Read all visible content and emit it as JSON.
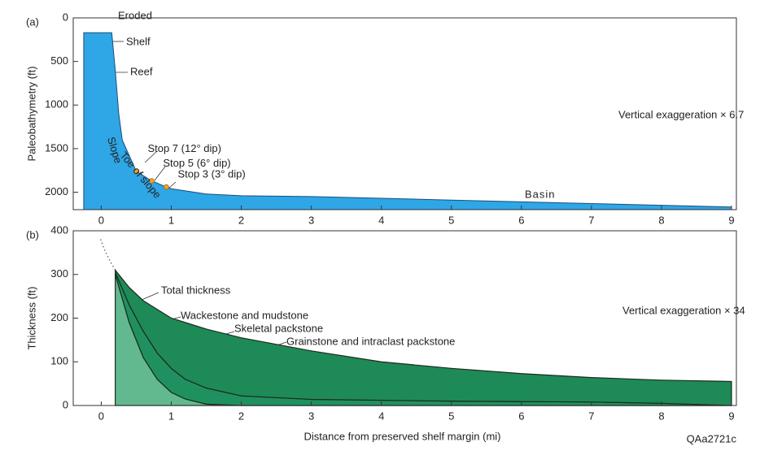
{
  "chart_data": [
    {
      "type": "area",
      "panel_label": "(a)",
      "ylabel": "Paleobathymetry (ft)",
      "invert_y": true,
      "xlim": [
        -0.4,
        9
      ],
      "xticks": [
        0,
        1,
        2,
        3,
        4,
        5,
        6,
        7,
        8,
        9
      ],
      "ylim": [
        0,
        2200
      ],
      "yticks": [
        0,
        500,
        1000,
        1500,
        2000
      ],
      "x": [
        -0.25,
        0,
        0.15,
        0.2,
        0.25,
        0.3,
        0.5,
        0.7,
        0.9,
        1,
        1.5,
        2,
        3,
        4,
        5,
        6,
        7,
        8,
        9
      ],
      "series": [
        {
          "name": "Basin",
          "color": "#2fa6e6",
          "values": [
            170,
            170,
            170,
            600,
            1100,
            1400,
            1760,
            1860,
            1930,
            1960,
            2020,
            2040,
            2050,
            2070,
            2090,
            2110,
            2130,
            2150,
            2170
          ]
        }
      ],
      "stops": [
        {
          "label": "Stop 7 (12° dip)",
          "x": 0.5,
          "y": 1760
        },
        {
          "label": "Stop 5 (6° dip)",
          "x": 0.72,
          "y": 1870
        },
        {
          "label": "Stop 3 (3° dip)",
          "x": 0.93,
          "y": 1940
        }
      ],
      "annotations": [
        "Eroded",
        "Shelf",
        "Reef",
        "Slope",
        "Toe of slope",
        "Vertical exaggeration × 6.7"
      ]
    },
    {
      "type": "stacked_area",
      "panel_label": "(b)",
      "ylabel": "Thickness (ft)",
      "xlabel": "Distance from preserved shelf margin (mi)",
      "xlim": [
        -0.4,
        9
      ],
      "xticks": [
        0,
        1,
        2,
        3,
        4,
        5,
        6,
        7,
        8,
        9
      ],
      "ylim": [
        0,
        400
      ],
      "yticks": [
        0,
        100,
        200,
        300,
        400
      ],
      "x": [
        0.2,
        0.4,
        0.6,
        0.8,
        1,
        1.2,
        1.5,
        2,
        3,
        4,
        5,
        6,
        7,
        8,
        9
      ],
      "series": [
        {
          "name": "Grainstone and intraclast packstone",
          "color": "#62b98f",
          "values": [
            300,
            190,
            110,
            60,
            30,
            15,
            3,
            0,
            0,
            0,
            0,
            0,
            0,
            0,
            0
          ]
        },
        {
          "name": "Skeletal packstone",
          "color": "#1f9160",
          "values": [
            5,
            40,
            60,
            60,
            55,
            45,
            37,
            22,
            14,
            12,
            10,
            9,
            8,
            5,
            0
          ]
        },
        {
          "name": "Wackestone and mudstone",
          "color": "#1e8a57",
          "values": [
            5,
            40,
            70,
            100,
            115,
            130,
            135,
            133,
            111,
            88,
            75,
            64,
            56,
            53,
            55
          ]
        }
      ],
      "annotations": [
        "Total thickness",
        "Vertical exaggeration × 34",
        "QAa2721c"
      ]
    }
  ]
}
